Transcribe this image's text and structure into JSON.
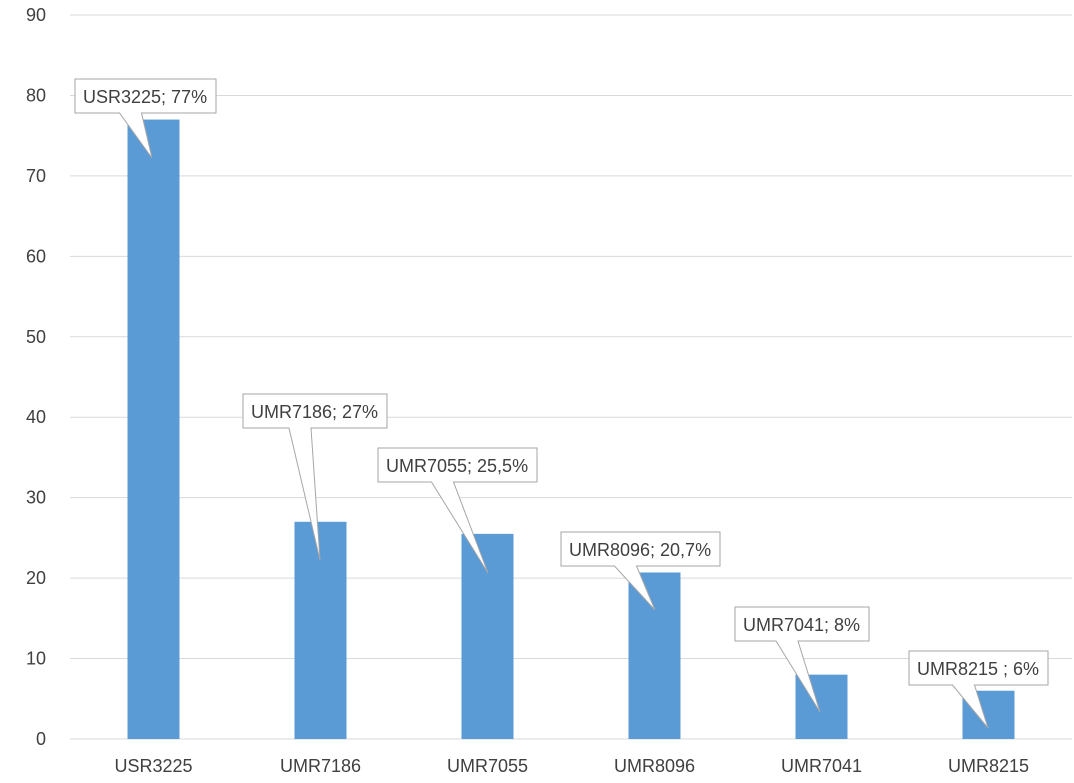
{
  "chart_data": {
    "type": "bar",
    "title": "",
    "xlabel": "",
    "ylabel": "",
    "categories": [
      "USR3225",
      "UMR7186",
      "UMR7055",
      "UMR8096",
      "UMR7041",
      "UMR8215"
    ],
    "values": [
      77,
      27,
      25.5,
      20.7,
      8,
      6
    ],
    "data_labels": [
      "USR3225; 77%",
      "UMR7186; 27%",
      "UMR7055; 25,5%",
      "UMR8096; 20,7%",
      "UMR7041; 8%",
      "UMR8215 ; 6%"
    ],
    "ylim": [
      0,
      90
    ],
    "yticks": [
      "0",
      "10",
      "20",
      "30",
      "40",
      "50",
      "60",
      "70",
      "80",
      "90"
    ],
    "grid": true,
    "legend": "none",
    "colors": {
      "bar": "#5b9bd5",
      "grid": "#d9d9d9",
      "text": "#404040",
      "callout_border": "#a6a6a6"
    }
  }
}
